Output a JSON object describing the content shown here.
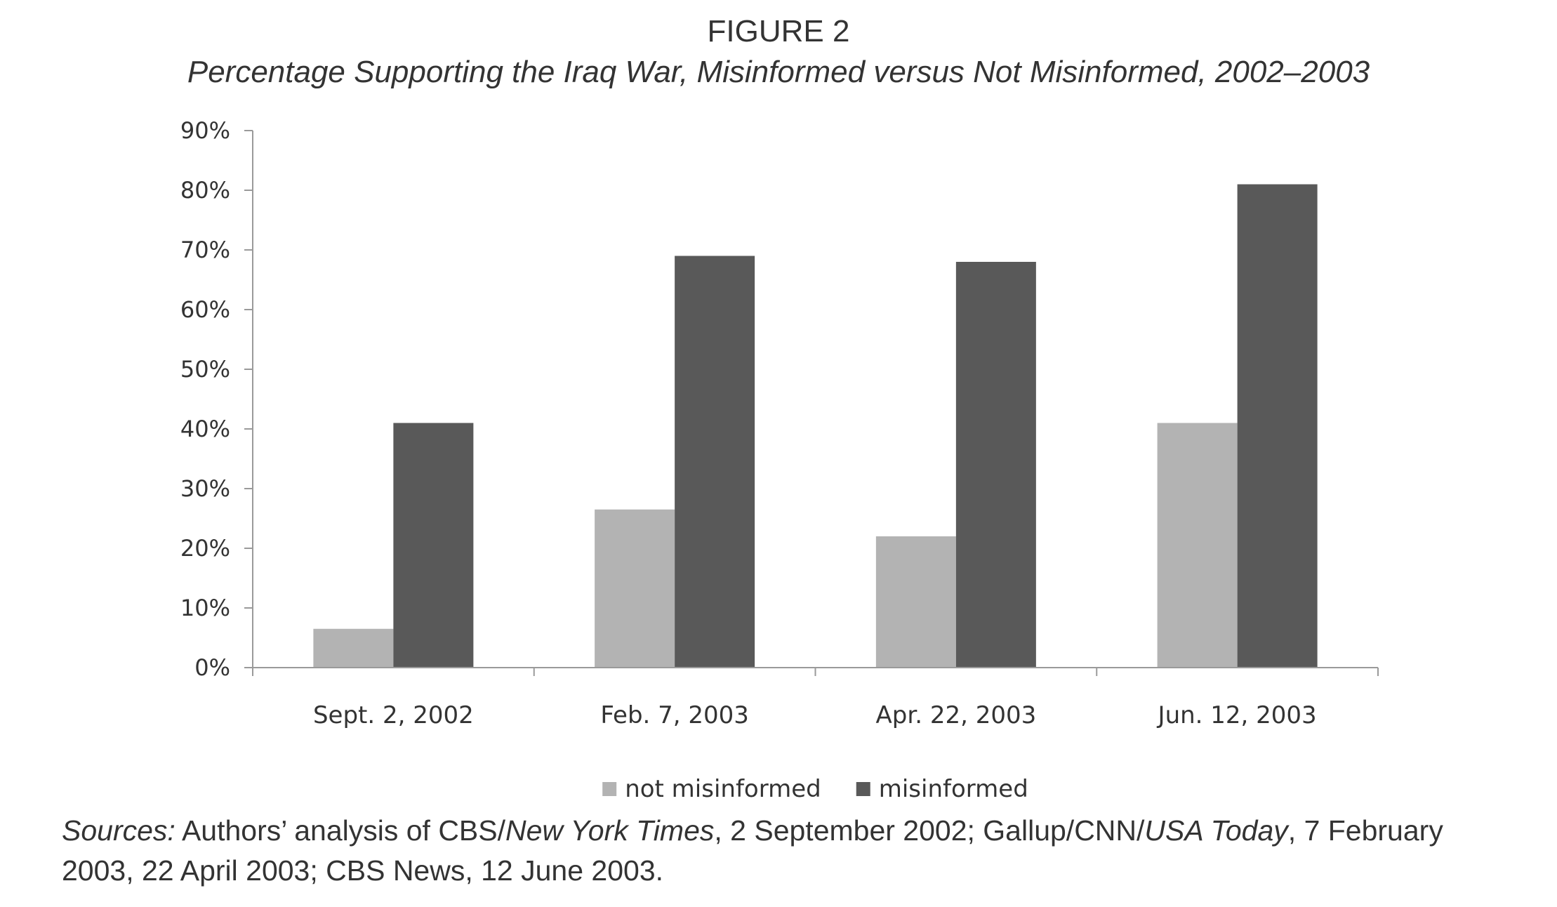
{
  "figure": {
    "label": "FIGURE 2",
    "title": "Percentage Supporting the Iraq War, Misinformed versus Not Misinformed, 2002–2003"
  },
  "chart_data": {
    "type": "bar",
    "title": "Percentage Supporting the Iraq War, Misinformed versus Not Misinformed, 2002–2003",
    "xlabel": "",
    "ylabel": "",
    "categories": [
      "Sept. 2, 2002",
      "Feb. 7, 2003",
      "Apr. 22, 2003",
      "Jun. 12, 2003"
    ],
    "series": [
      {
        "name": "not misinformed",
        "color": "#b3b3b3",
        "values": [
          6.5,
          26.5,
          22,
          41
        ]
      },
      {
        "name": "misinformed",
        "color": "#595959",
        "values": [
          41,
          69,
          68,
          81
        ]
      }
    ],
    "ylim": [
      0,
      90
    ],
    "yticks": [
      0,
      10,
      20,
      30,
      40,
      50,
      60,
      70,
      80,
      90
    ],
    "ytick_labels": [
      "0%",
      "10%",
      "20%",
      "30%",
      "40%",
      "50%",
      "60%",
      "70%",
      "80%",
      "90%"
    ],
    "grid": false,
    "legend_position": "bottom-center"
  },
  "sources": {
    "label": "Sources:",
    "text_1": " Authors’ analysis of CBS/",
    "italic_1": "New York Times",
    "text_2": ", 2 September 2002; Gallup/CNN/",
    "italic_2": "USA Today",
    "text_3": ", 7 February 2003, 22 April 2003; CBS News, 12 June 2003."
  }
}
